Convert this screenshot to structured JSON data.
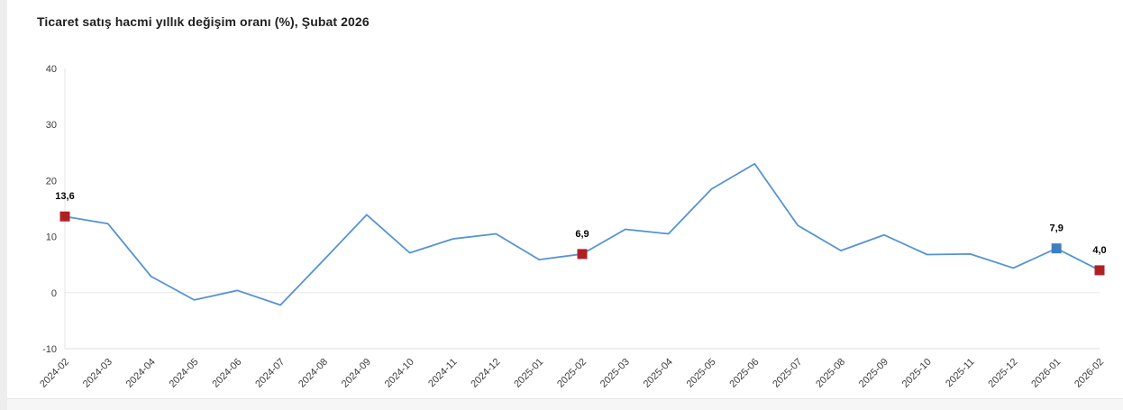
{
  "page": {
    "title": "Ticaret satış hacmi yıllık değişim oranı (%), Şubat 2026"
  },
  "chart_data": {
    "type": "line",
    "title": "Ticaret satış hacmi yıllık değişim oranı (%), Şubat 2026",
    "x": [
      "2024-02",
      "2024-03",
      "2024-04",
      "2024-05",
      "2024-06",
      "2024-07",
      "2024-08",
      "2024-09",
      "2024-10",
      "2024-11",
      "2024-12",
      "2025-01",
      "2025-02",
      "2025-03",
      "2025-04",
      "2025-05",
      "2025-06",
      "2025-07",
      "2025-08",
      "2025-09",
      "2025-10",
      "2025-11",
      "2025-12",
      "2026-01",
      "2026-02"
    ],
    "values": [
      13.6,
      12.3,
      2.9,
      -1.3,
      0.4,
      -2.2,
      5.8,
      13.9,
      7.1,
      9.6,
      10.5,
      5.9,
      6.9,
      11.3,
      10.5,
      18.5,
      23.0,
      12.0,
      7.5,
      10.3,
      6.8,
      6.9,
      4.4,
      7.9,
      4.0
    ],
    "xlabel": "",
    "ylabel": "",
    "ylim": [
      -10,
      40
    ],
    "yticks": [
      40,
      30,
      20,
      10,
      0,
      -10
    ],
    "grid": "zero-line-and-bottom-only",
    "legend": "none",
    "line_color": "#5593d3",
    "axis_color": "#e3e3e3",
    "zero_line_color": "#e8e8e8",
    "bottom_line_color": "#dcdcdc",
    "tick_label_color": "#3c3c3c",
    "value_label_color": "#000000",
    "marked_points": [
      {
        "x": "2024-02",
        "index": 0,
        "value": 13.6,
        "label": "13,6",
        "color": "#b01f24"
      },
      {
        "x": "2025-02",
        "index": 12,
        "value": 6.9,
        "label": "6,9",
        "color": "#b01f24"
      },
      {
        "x": "2026-01",
        "index": 23,
        "value": 7.9,
        "label": "7,9",
        "color": "#3d7fc0"
      },
      {
        "x": "2026-02",
        "index": 24,
        "value": 4.0,
        "label": "4,0",
        "color": "#b01f24"
      }
    ]
  }
}
